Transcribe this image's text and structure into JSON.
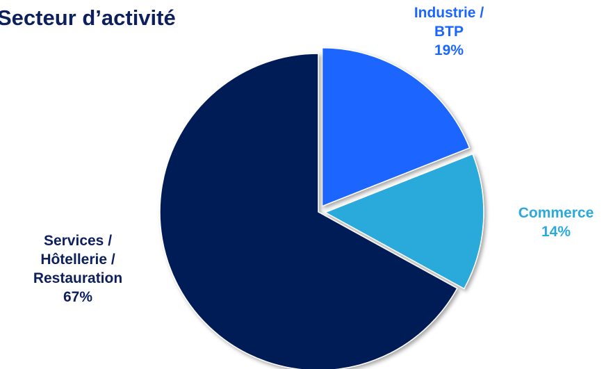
{
  "chart_data": {
    "type": "pie",
    "title": "Secteur d’activité",
    "slices": [
      {
        "label_lines": [
          "Industrie /",
          "BTP"
        ],
        "percent_label": "19%",
        "value": 19,
        "color": "#1a66ff",
        "exploded": true,
        "label_color": "#1a66ff"
      },
      {
        "label_lines": [
          "Commerce"
        ],
        "percent_label": "14%",
        "value": 14,
        "color": "#2aa9db",
        "exploded": true,
        "label_color": "#2aa9db"
      },
      {
        "label_lines": [
          "Services /",
          "Hôtellerie /",
          "Restauration"
        ],
        "percent_label": "67%",
        "value": 67,
        "color": "#061d56",
        "exploded": false,
        "label_color": "#0d1f5c"
      }
    ]
  }
}
